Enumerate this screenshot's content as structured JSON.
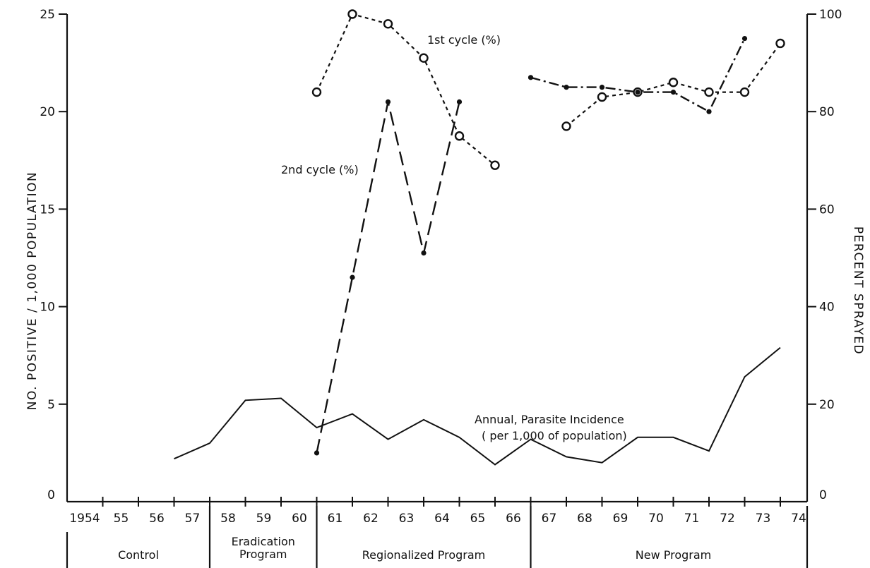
{
  "chart_data": {
    "type": "line",
    "title": "",
    "ylabel_left": "NO. POSITIVE / 1,000 POPULATION",
    "ylabel_right": "PERCENT SPRAYED",
    "ylim_left": [
      0,
      25
    ],
    "ylim_right": [
      0,
      100
    ],
    "yticks_left": [
      "0",
      "5",
      "10",
      "15",
      "20",
      "25"
    ],
    "yticks_right": [
      "0",
      "20",
      "40",
      "60",
      "80",
      "100"
    ],
    "x_tick_labels": [
      "1954",
      "55",
      "56",
      "57",
      "58",
      "59",
      "60",
      "61",
      "62",
      "63",
      "64",
      "65",
      "66",
      "67",
      "68",
      "69",
      "70",
      "71",
      "72",
      "73",
      "74"
    ],
    "x_years": [
      1954,
      1955,
      1956,
      1957,
      1958,
      1959,
      1960,
      1961,
      1962,
      1963,
      1964,
      1965,
      1966,
      1967,
      1968,
      1969,
      1970,
      1971,
      1972,
      1973,
      1974
    ],
    "periods": [
      {
        "label": "Control",
        "start": 1954,
        "end": 1957
      },
      {
        "label": "Eradication Program",
        "lines": [
          "Eradication",
          "Program"
        ],
        "start": 1958,
        "end": 1960
      },
      {
        "label": "Regionalized Program",
        "start": 1961,
        "end": 1966
      },
      {
        "label": "New Program",
        "start": 1967,
        "end": 1974
      }
    ],
    "series": [
      {
        "name": "Annual Parasite Incidence (per 1,000 of population)",
        "label_lines": [
          "Annual, Parasite Incidence",
          "( per 1,000 of population)"
        ],
        "axis": "left",
        "style": "solid",
        "points": [
          [
            1957,
            2.2
          ],
          [
            1958,
            3.0
          ],
          [
            1959,
            5.2
          ],
          [
            1960,
            5.3
          ],
          [
            1961,
            3.8
          ],
          [
            1962,
            4.5
          ],
          [
            1963,
            3.2
          ],
          [
            1964,
            4.2
          ],
          [
            1965,
            3.3
          ],
          [
            1966,
            1.9
          ],
          [
            1967,
            3.2
          ],
          [
            1968,
            2.3
          ],
          [
            1969,
            2.0
          ],
          [
            1970,
            3.3
          ],
          [
            1971,
            3.3
          ],
          [
            1972,
            2.6
          ],
          [
            1973,
            6.4
          ],
          [
            1974,
            7.9
          ]
        ]
      },
      {
        "name": "1st cycle (%)",
        "axis": "right",
        "style": "dotted",
        "segments": [
          [
            [
              1961,
              84
            ],
            [
              1962,
              100
            ],
            [
              1963,
              98
            ],
            [
              1964,
              91
            ],
            [
              1965,
              75
            ],
            [
              1966,
              69
            ]
          ],
          [
            [
              1968,
              77
            ],
            [
              1969,
              83
            ],
            [
              1970,
              84
            ],
            [
              1971,
              86
            ],
            [
              1972,
              84
            ],
            [
              1973,
              84
            ],
            [
              1974,
              94
            ]
          ]
        ]
      },
      {
        "name": "2nd cycle (%)",
        "axis": "right",
        "style": "dashed",
        "segments": [
          [
            [
              1961,
              10
            ],
            [
              1962,
              46
            ],
            [
              1963,
              82
            ],
            [
              1964,
              51
            ],
            [
              1965,
              82
            ]
          ],
          [
            [
              1967,
              87
            ],
            [
              1968,
              85
            ],
            [
              1969,
              85
            ],
            [
              1970,
              84
            ],
            [
              1971,
              84
            ],
            [
              1972,
              80
            ],
            [
              1973,
              95
            ]
          ]
        ]
      }
    ]
  }
}
